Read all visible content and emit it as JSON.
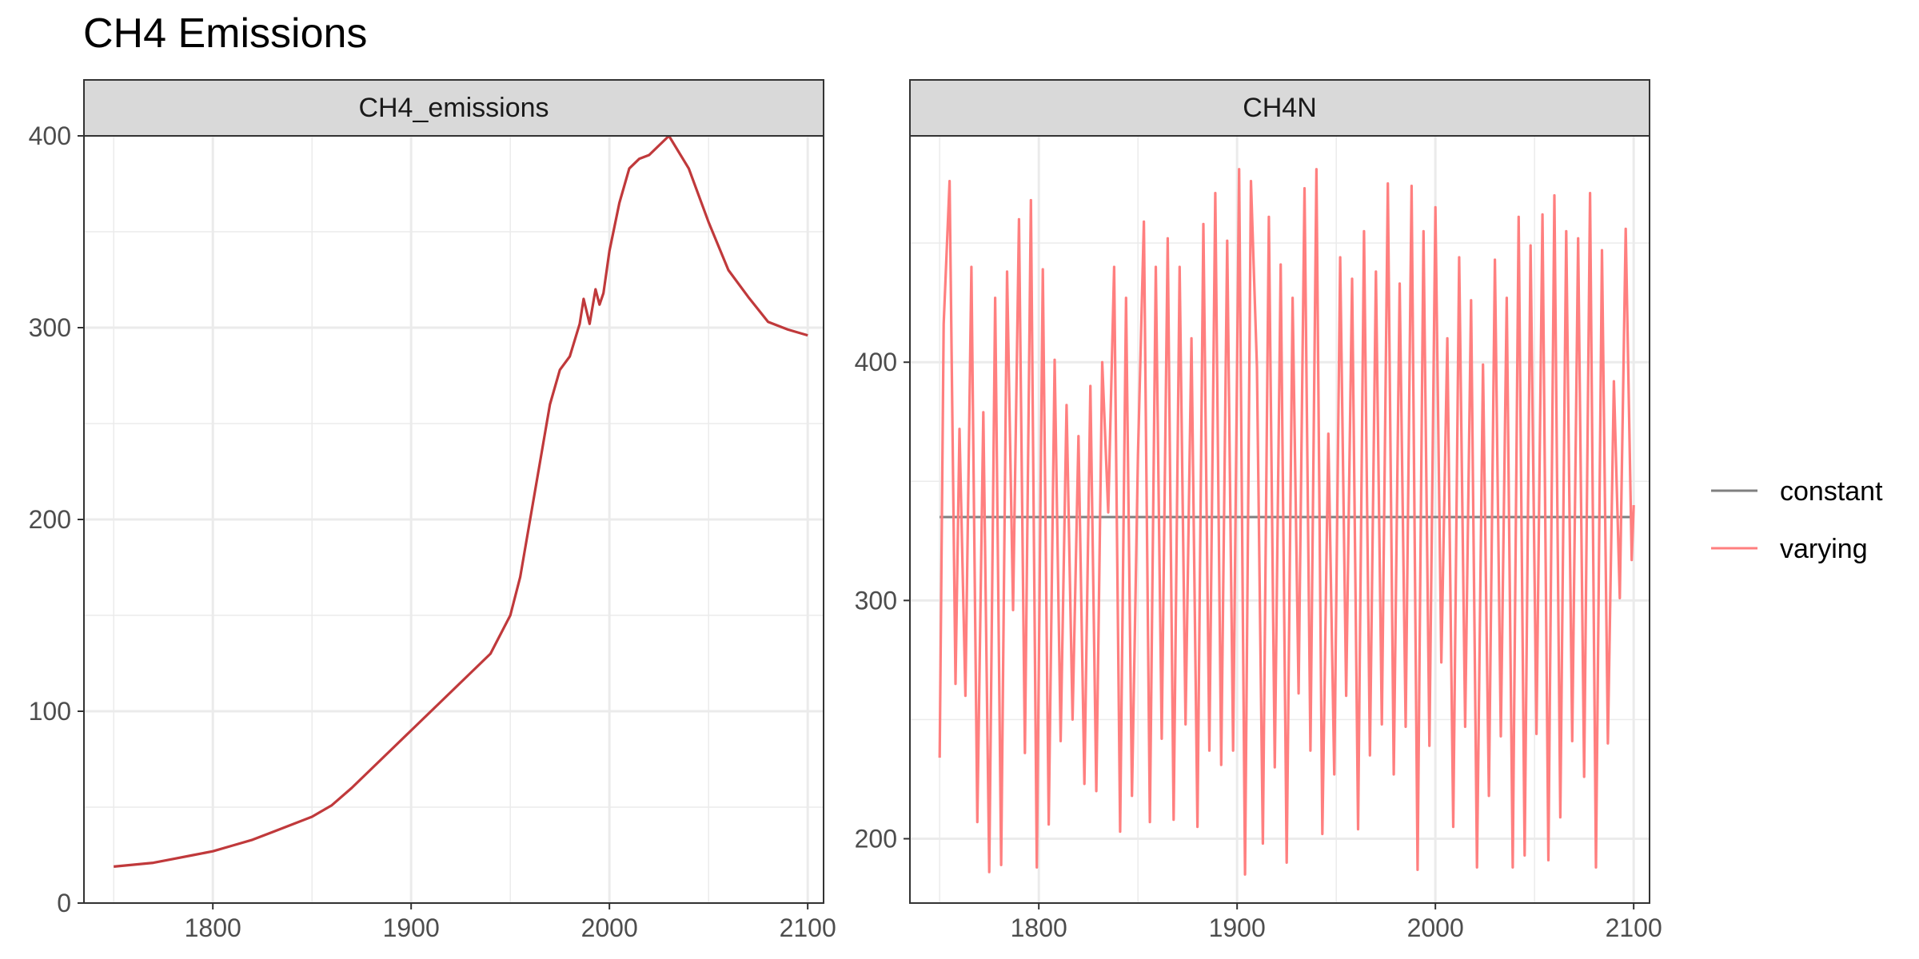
{
  "title": "CH4 Emissions",
  "colors": {
    "emissions_line": "#C0393B",
    "constant": "#7F7F7F",
    "varying": "#FF7F7F",
    "strip_fill": "#D9D9D9",
    "grid": "#EBEBEB",
    "panel_border": "#333333"
  },
  "chart_data": [
    {
      "type": "line",
      "panel_label": "CH4_emissions",
      "xlim": [
        1735,
        2108
      ],
      "ylim": [
        0,
        400
      ],
      "x_ticks": [
        1800,
        1900,
        2000,
        2100
      ],
      "y_ticks": [
        0,
        100,
        200,
        300,
        400
      ],
      "grid": true,
      "series": [
        {
          "color_key": "emissions_line",
          "x": [
            1750,
            1760,
            1770,
            1780,
            1790,
            1800,
            1810,
            1820,
            1830,
            1840,
            1850,
            1860,
            1870,
            1880,
            1890,
            1900,
            1910,
            1920,
            1930,
            1940,
            1950,
            1955,
            1960,
            1965,
            1970,
            1975,
            1980,
            1985,
            1987,
            1990,
            1993,
            1995,
            1997,
            2000,
            2005,
            2010,
            2015,
            2020,
            2030,
            2040,
            2050,
            2060,
            2070,
            2080,
            2090,
            2100
          ],
          "y": [
            19,
            20,
            21,
            23,
            25,
            27,
            30,
            33,
            37,
            41,
            45,
            51,
            60,
            70,
            80,
            90,
            100,
            110,
            120,
            130,
            150,
            170,
            200,
            230,
            260,
            278,
            285,
            302,
            315,
            302,
            320,
            312,
            318,
            340,
            365,
            383,
            388,
            390,
            400,
            383,
            355,
            330,
            316,
            303,
            299,
            296
          ]
        }
      ]
    },
    {
      "type": "line",
      "panel_label": "CH4N",
      "xlim": [
        1735,
        2108
      ],
      "ylim": [
        173,
        495
      ],
      "x_ticks": [
        1800,
        1900,
        2000,
        2100
      ],
      "y_ticks": [
        200,
        300,
        400
      ],
      "grid": true,
      "legend_position": "right",
      "series": [
        {
          "name": "constant",
          "color_key": "constant",
          "x": [
            1750,
            2100
          ],
          "y": [
            335,
            335
          ]
        },
        {
          "name": "varying",
          "color_key": "varying",
          "x": [
            1750,
            1752,
            1755,
            1758,
            1760,
            1763,
            1766,
            1769,
            1772,
            1775,
            1778,
            1781,
            1784,
            1787,
            1790,
            1793,
            1796,
            1799,
            1802,
            1805,
            1808,
            1811,
            1814,
            1817,
            1820,
            1823,
            1826,
            1829,
            1832,
            1835,
            1838,
            1841,
            1844,
            1847,
            1850,
            1853,
            1856,
            1859,
            1862,
            1865,
            1868,
            1871,
            1874,
            1877,
            1880,
            1883,
            1886,
            1889,
            1892,
            1895,
            1898,
            1901,
            1904,
            1907,
            1910,
            1913,
            1916,
            1919,
            1922,
            1925,
            1928,
            1931,
            1934,
            1937,
            1940,
            1943,
            1946,
            1949,
            1952,
            1955,
            1958,
            1961,
            1964,
            1967,
            1970,
            1973,
            1976,
            1979,
            1982,
            1985,
            1988,
            1991,
            1994,
            1997,
            2000,
            2003,
            2006,
            2009,
            2012,
            2015,
            2018,
            2021,
            2024,
            2027,
            2030,
            2033,
            2036,
            2039,
            2042,
            2045,
            2048,
            2051,
            2054,
            2057,
            2060,
            2063,
            2066,
            2069,
            2072,
            2075,
            2078,
            2081,
            2084,
            2087,
            2090,
            2093,
            2096,
            2099,
            2100
          ],
          "y": [
            234,
            416,
            476,
            265,
            372,
            260,
            440,
            207,
            379,
            186,
            427,
            189,
            438,
            296,
            460,
            236,
            468,
            188,
            439,
            206,
            401,
            241,
            382,
            250,
            369,
            223,
            390,
            220,
            400,
            337,
            440,
            203,
            427,
            218,
            361,
            459,
            207,
            440,
            242,
            452,
            208,
            440,
            248,
            410,
            205,
            458,
            237,
            471,
            231,
            451,
            237,
            481,
            185,
            476,
            398,
            198,
            461,
            230,
            441,
            190,
            427,
            261,
            473,
            237,
            481,
            202,
            370,
            227,
            444,
            260,
            435,
            204,
            455,
            235,
            438,
            248,
            475,
            227,
            433,
            247,
            474,
            187,
            455,
            239,
            465,
            274,
            410,
            205,
            444,
            247,
            426,
            188,
            399,
            218,
            443,
            243,
            427,
            188,
            461,
            193,
            449,
            244,
            462,
            191,
            470,
            209,
            455,
            241,
            452,
            226,
            471,
            188,
            447,
            240,
            392,
            301,
            456,
            317,
            340
          ]
        }
      ]
    }
  ]
}
